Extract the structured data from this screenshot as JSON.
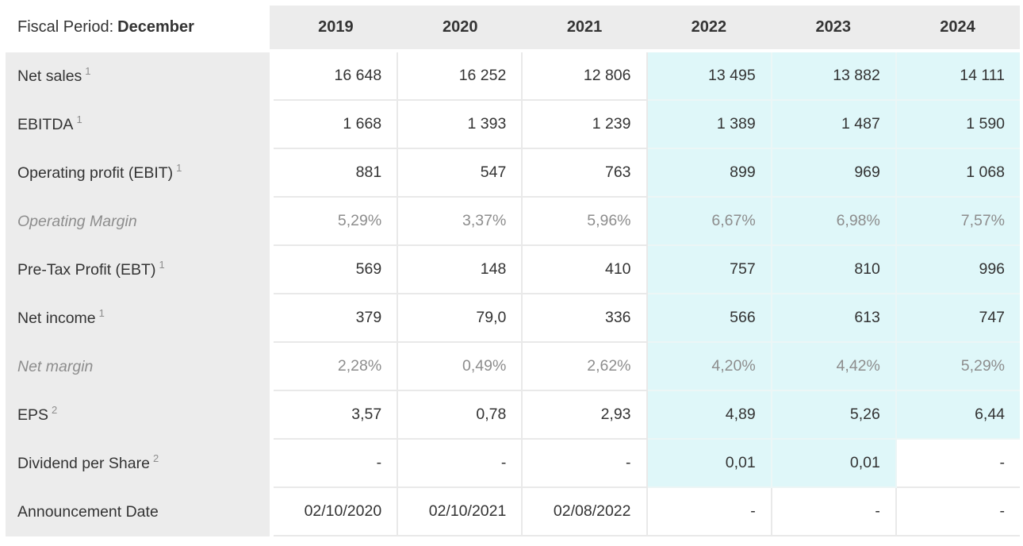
{
  "header": {
    "fiscal_period_prefix": "Fiscal Period:",
    "fiscal_period_value": "December",
    "years": [
      "2019",
      "2020",
      "2021",
      "2022",
      "2023",
      "2024"
    ]
  },
  "rows": [
    {
      "id": "net-sales",
      "label": "Net sales",
      "sup": "1",
      "italic": false,
      "muted": false,
      "values": [
        "16 648",
        "16 252",
        "12 806",
        "13 495",
        "13 882",
        "14 111"
      ],
      "highlight": [
        false,
        false,
        false,
        true,
        true,
        true
      ]
    },
    {
      "id": "ebitda",
      "label": "EBITDA",
      "sup": "1",
      "italic": false,
      "muted": false,
      "values": [
        "1 668",
        "1 393",
        "1 239",
        "1 389",
        "1 487",
        "1 590"
      ],
      "highlight": [
        false,
        false,
        false,
        true,
        true,
        true
      ]
    },
    {
      "id": "operating-profit-ebit",
      "label": "Operating profit (EBIT)",
      "sup": "1",
      "italic": false,
      "muted": false,
      "values": [
        "881",
        "547",
        "763",
        "899",
        "969",
        "1 068"
      ],
      "highlight": [
        false,
        false,
        false,
        true,
        true,
        true
      ]
    },
    {
      "id": "operating-margin",
      "label": "Operating Margin",
      "sup": "",
      "italic": true,
      "muted": true,
      "values": [
        "5,29%",
        "3,37%",
        "5,96%",
        "6,67%",
        "6,98%",
        "7,57%"
      ],
      "highlight": [
        false,
        false,
        false,
        true,
        true,
        true
      ]
    },
    {
      "id": "pre-tax-profit-ebt",
      "label": "Pre-Tax Profit (EBT)",
      "sup": "1",
      "italic": false,
      "muted": false,
      "values": [
        "569",
        "148",
        "410",
        "757",
        "810",
        "996"
      ],
      "highlight": [
        false,
        false,
        false,
        true,
        true,
        true
      ]
    },
    {
      "id": "net-income",
      "label": "Net income",
      "sup": "1",
      "italic": false,
      "muted": false,
      "values": [
        "379",
        "79,0",
        "336",
        "566",
        "613",
        "747"
      ],
      "highlight": [
        false,
        false,
        false,
        true,
        true,
        true
      ]
    },
    {
      "id": "net-margin",
      "label": "Net margin",
      "sup": "",
      "italic": true,
      "muted": true,
      "values": [
        "2,28%",
        "0,49%",
        "2,62%",
        "4,20%",
        "4,42%",
        "5,29%"
      ],
      "highlight": [
        false,
        false,
        false,
        true,
        true,
        true
      ]
    },
    {
      "id": "eps",
      "label": "EPS",
      "sup": "2",
      "italic": false,
      "muted": false,
      "values": [
        "3,57",
        "0,78",
        "2,93",
        "4,89",
        "5,26",
        "6,44"
      ],
      "highlight": [
        false,
        false,
        false,
        true,
        true,
        true
      ]
    },
    {
      "id": "dividend-per-share",
      "label": "Dividend per Share",
      "sup": "2",
      "italic": false,
      "muted": false,
      "values": [
        "-",
        "-",
        "-",
        "0,01",
        "0,01",
        "-"
      ],
      "highlight": [
        false,
        false,
        false,
        true,
        true,
        false
      ]
    },
    {
      "id": "announcement-date",
      "label": "Announcement Date",
      "sup": "",
      "italic": false,
      "muted": false,
      "values": [
        "02/10/2020",
        "02/10/2021",
        "02/08/2022",
        "-",
        "-",
        "-"
      ],
      "highlight": [
        false,
        false,
        false,
        false,
        false,
        false
      ]
    }
  ],
  "colors": {
    "header_bg": "#ececec",
    "label_col_bg": "#ececec",
    "estimate_bg": "#dff7f9",
    "grid_line": "#e9e9e9",
    "estimate_line": "#ecf6f6",
    "text_dark": "#333333",
    "text_muted": "#8d8d8d"
  }
}
